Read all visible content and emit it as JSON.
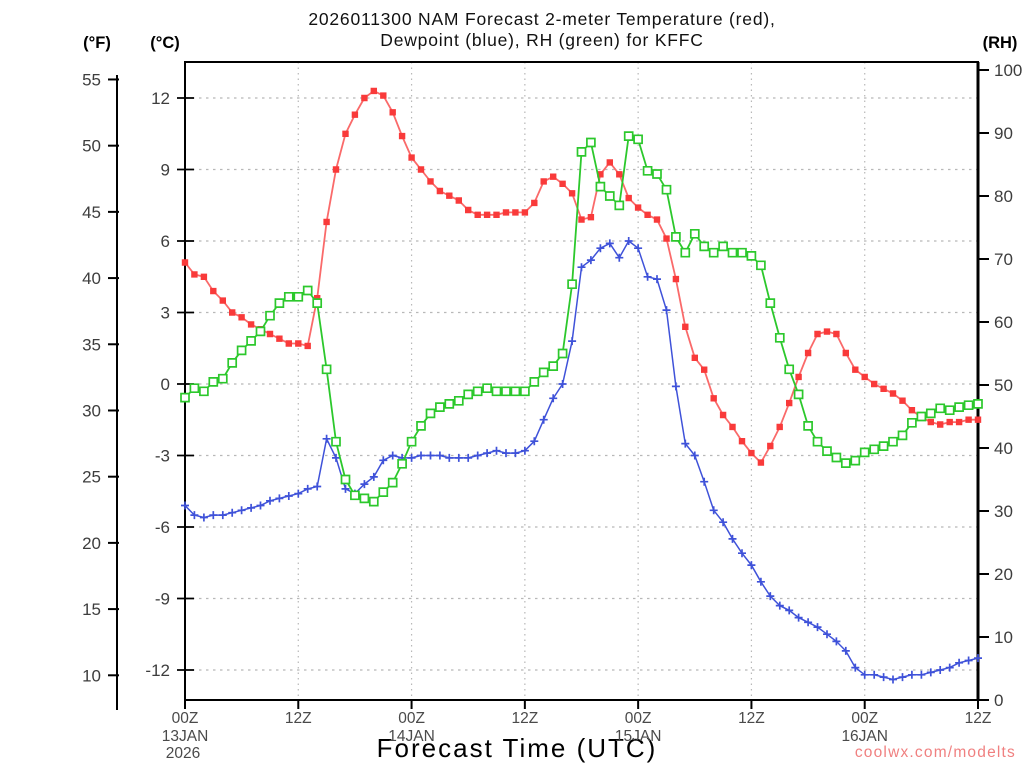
{
  "title": {
    "line1": "2026011300 NAM Forecast 2-meter Temperature (red),",
    "line2": "Dewpoint (blue), RH (green) for KFFC"
  },
  "axis_headers": {
    "fahrenheit": "(°F)",
    "celsius": "(°C)",
    "rh": "(RH)"
  },
  "watermark": {
    "text": "coolwx.com/modelts",
    "color": "#f08080"
  },
  "colors": {
    "temperature_marker": "#f93a3a",
    "temperature_line": "#fa6a6a",
    "dewpoint": "#3f52d9",
    "rh": "#2cc82c",
    "grid": "#b8b8b8",
    "axis": "#000000",
    "tick_text": "#3d3d3d"
  },
  "chart_data": {
    "type": "line",
    "title": "2026011300 NAM Forecast 2-meter Temperature (red), Dewpoint (blue), RH (green) for KFFC",
    "xlabel": "Forecast Time (UTC)",
    "station": "KFFC",
    "model_run_visible_in_title": "2026011300 NAM",
    "x_hours_range": [
      0,
      84
    ],
    "x_step_hours": 1,
    "x_axis": {
      "ticks": [
        {
          "hour": 0,
          "label": "00Z"
        },
        {
          "hour": 12,
          "label": "12Z"
        },
        {
          "hour": 24,
          "label": "00Z"
        },
        {
          "hour": 36,
          "label": "12Z"
        },
        {
          "hour": 48,
          "label": "00Z"
        },
        {
          "hour": 60,
          "label": "12Z"
        },
        {
          "hour": 72,
          "label": "00Z"
        },
        {
          "hour": 84,
          "label": "12Z"
        }
      ],
      "dates": [
        {
          "hour": 0,
          "label": "13JAN",
          "year": "2026"
        },
        {
          "hour": 24,
          "label": "14JAN",
          "year": ""
        },
        {
          "hour": 48,
          "label": "15JAN",
          "year": ""
        },
        {
          "hour": 72,
          "label": "16JAN",
          "year": ""
        }
      ],
      "gridline_hours": [
        12,
        24,
        36,
        48,
        60,
        72
      ]
    },
    "y_axes": {
      "fahrenheit_ticks": [
        55,
        50,
        45,
        40,
        35,
        30,
        25,
        20,
        15,
        10
      ],
      "celsius_ticks": [
        12,
        9,
        6,
        3,
        0,
        -3,
        -6,
        -9,
        -12
      ],
      "celsius_gridlines": [
        12,
        9,
        6,
        3,
        0,
        -3,
        -6,
        -9,
        -12
      ],
      "rh_ticks": [
        100,
        90,
        80,
        70,
        60,
        50,
        40,
        30,
        20,
        10,
        0
      ],
      "rh_range": [
        0,
        100
      ]
    },
    "series": [
      {
        "name": "temperature-2m",
        "label": "Temperature (red)",
        "scale": "celsius",
        "unit": "°C",
        "marker": "filled-square",
        "values": [
          5.1,
          4.6,
          4.5,
          3.9,
          3.5,
          3.0,
          2.8,
          2.5,
          2.3,
          2.1,
          1.9,
          1.7,
          1.7,
          1.6,
          3.6,
          6.8,
          9.0,
          10.5,
          11.3,
          12.0,
          12.3,
          12.1,
          11.4,
          10.4,
          9.5,
          9.0,
          8.5,
          8.1,
          7.9,
          7.7,
          7.3,
          7.1,
          7.1,
          7.1,
          7.2,
          7.2,
          7.2,
          7.6,
          8.5,
          8.7,
          8.4,
          8.0,
          6.9,
          7.0,
          8.8,
          9.3,
          8.8,
          7.8,
          7.4,
          7.1,
          6.9,
          6.1,
          4.4,
          2.4,
          1.1,
          0.6,
          -0.6,
          -1.3,
          -1.8,
          -2.4,
          -2.9,
          -3.3,
          -2.6,
          -1.8,
          -0.8,
          0.3,
          1.3,
          2.1,
          2.2,
          2.1,
          1.3,
          0.6,
          0.3,
          0.0,
          -0.2,
          -0.4,
          -0.7,
          -1.1,
          -1.4,
          -1.6,
          -1.7,
          -1.6,
          -1.6,
          -1.5,
          -1.5
        ]
      },
      {
        "name": "dewpoint-2m",
        "label": "Dewpoint (blue)",
        "scale": "celsius",
        "unit": "°C",
        "marker": "plus",
        "values": [
          -5.1,
          -5.5,
          -5.6,
          -5.5,
          -5.5,
          -5.4,
          -5.3,
          -5.2,
          -5.1,
          -4.9,
          -4.8,
          -4.7,
          -4.6,
          -4.4,
          -4.3,
          -2.3,
          -3.1,
          -4.4,
          -4.6,
          -4.2,
          -3.9,
          -3.2,
          -3.0,
          -3.1,
          -3.1,
          -3.0,
          -3.0,
          -3.0,
          -3.1,
          -3.1,
          -3.1,
          -3.0,
          -2.9,
          -2.8,
          -2.9,
          -2.9,
          -2.8,
          -2.4,
          -1.5,
          -0.6,
          0.0,
          1.8,
          4.9,
          5.2,
          5.7,
          5.9,
          5.3,
          6.0,
          5.7,
          4.5,
          4.4,
          3.1,
          -0.1,
          -2.5,
          -3.0,
          -4.1,
          -5.3,
          -5.8,
          -6.5,
          -7.1,
          -7.6,
          -8.3,
          -8.9,
          -9.3,
          -9.5,
          -9.8,
          -10.0,
          -10.2,
          -10.5,
          -10.8,
          -11.2,
          -11.9,
          -12.2,
          -12.2,
          -12.3,
          -12.4,
          -12.3,
          -12.2,
          -12.2,
          -12.1,
          -12.0,
          -11.9,
          -11.7,
          -11.6,
          -11.5
        ]
      },
      {
        "name": "relative-humidity",
        "label": "RH (green)",
        "scale": "rh",
        "unit": "%",
        "marker": "open-square",
        "values": [
          48,
          49.5,
          49,
          50.5,
          51,
          53.5,
          55.5,
          57,
          58.5,
          61,
          63,
          64,
          64,
          65,
          63,
          52.5,
          41,
          35,
          32.5,
          32,
          31.5,
          33,
          34.5,
          37.5,
          41,
          43.5,
          45.5,
          46.5,
          47,
          47.5,
          48.5,
          49,
          49.5,
          49,
          49,
          49,
          49,
          50.5,
          52,
          53,
          55,
          66,
          87,
          88.5,
          81.5,
          80,
          78.5,
          89.5,
          89,
          84,
          83.5,
          81,
          73.5,
          71,
          74,
          72,
          71,
          72,
          71,
          71,
          70.5,
          69,
          63,
          57.5,
          52.5,
          48.5,
          43.5,
          41,
          39.5,
          38.5,
          37.6,
          38,
          39.3,
          39.8,
          40.3,
          41,
          42,
          44,
          45,
          45.5,
          46.3,
          46,
          46.5,
          46.8,
          47
        ]
      }
    ]
  }
}
